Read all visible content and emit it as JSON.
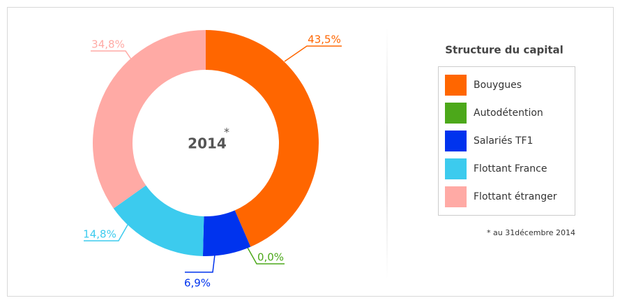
{
  "chart_data": {
    "type": "donut",
    "center_label": "2014",
    "center_note": "*",
    "legend_title": "Structure du capital",
    "categories": [
      "Bouygues",
      "Autodétention",
      "Salariés TF1",
      "Flottant France",
      "Flottant étranger"
    ],
    "values": [
      43.5,
      0.0,
      6.9,
      14.8,
      34.8
    ],
    "value_labels": [
      "43,5%",
      "0,0%",
      "6,9%",
      "14,8%",
      "34,8%"
    ],
    "colors": [
      "#ff6600",
      "#4ca81a",
      "#0033ee",
      "#3ccbee",
      "#ffaaa5"
    ],
    "footnote": "* au 31décembre 2014"
  }
}
